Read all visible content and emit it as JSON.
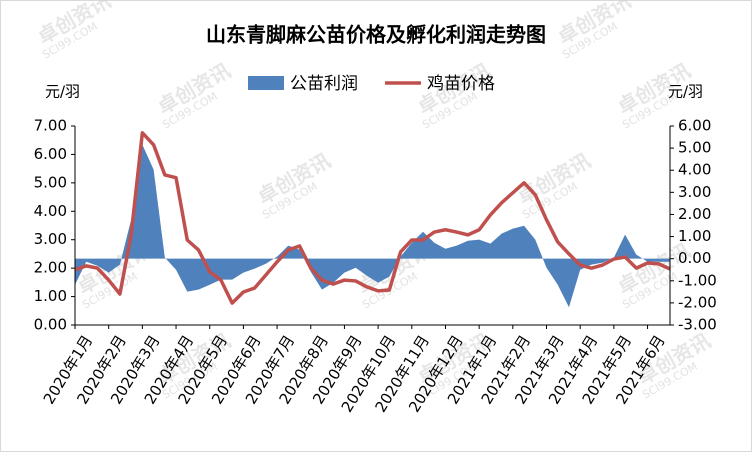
{
  "chart_data": {
    "type": "dual-axis-area-line",
    "title": "山东青脚麻公苗价格及孵化利润走势图",
    "y_label": "元/羽",
    "y2_label": "元/羽",
    "watermark": "卓创资讯",
    "watermark_url": "SCI99.COM",
    "legend": "top",
    "categories": [
      "2020年1月",
      null,
      null,
      "2020年2月",
      null,
      null,
      "2020年3月",
      null,
      null,
      "2020年4月",
      null,
      null,
      "2020年5月",
      null,
      null,
      "2020年6月",
      null,
      null,
      "2020年7月",
      null,
      null,
      "2020年8月",
      null,
      null,
      "2020年9月",
      null,
      null,
      "2020年10月",
      null,
      null,
      "2020年11月",
      null,
      null,
      "2020年12月",
      null,
      null,
      "2021年1月",
      null,
      null,
      "2021年2月",
      null,
      null,
      "2021年3月",
      null,
      null,
      "2021年4月",
      null,
      null,
      "2021年5月",
      null,
      null,
      "2021年6月",
      null,
      null
    ],
    "series": [
      {
        "name": "公苗利润",
        "type": "area",
        "axis": "y2",
        "color": "#4f81bd",
        "values": [
          -1.18,
          -0.14,
          -0.32,
          -0.63,
          -0.27,
          1.76,
          5.16,
          4.03,
          0.05,
          -0.5,
          -1.49,
          -1.4,
          -1.18,
          -0.95,
          -0.95,
          -0.63,
          -0.45,
          -0.23,
          0.09,
          0.59,
          0.41,
          -0.59,
          -1.4,
          -1.09,
          -0.63,
          -0.41,
          -0.77,
          -1.09,
          -0.81,
          0.09,
          0.72,
          1.22,
          0.72,
          0.45,
          0.59,
          0.81,
          0.86,
          0.68,
          1.13,
          1.36,
          1.49,
          0.86,
          -0.41,
          -1.18,
          -2.2,
          -0.5,
          -0.27,
          -0.18,
          0.05,
          1.09,
          0.18,
          -0.14,
          -0.14,
          -0.14
        ]
      },
      {
        "name": "鸡苗价格",
        "type": "line",
        "axis": "y",
        "color": "#c0504d",
        "values": [
          1.94,
          2.08,
          2.0,
          1.58,
          1.09,
          3.17,
          6.76,
          6.34,
          5.28,
          5.18,
          2.99,
          2.64,
          1.87,
          1.58,
          0.77,
          1.16,
          1.3,
          1.76,
          2.22,
          2.64,
          2.78,
          2.0,
          1.58,
          1.44,
          1.58,
          1.55,
          1.34,
          1.2,
          1.23,
          2.57,
          2.99,
          2.99,
          3.27,
          3.35,
          3.27,
          3.17,
          3.35,
          3.87,
          4.3,
          4.65,
          5.0,
          4.58,
          3.7,
          2.92,
          2.5,
          2.11,
          2.0,
          2.11,
          2.32,
          2.39,
          2.0,
          2.18,
          2.15,
          1.97
        ]
      }
    ],
    "ylim": [
      0,
      7
    ],
    "yticks": [
      {
        "value": 0,
        "label": "0.00"
      },
      {
        "value": 1,
        "label": "1.00"
      },
      {
        "value": 2,
        "label": "2.00"
      },
      {
        "value": 3,
        "label": "3.00"
      },
      {
        "value": 4,
        "label": "4.00"
      },
      {
        "value": 5,
        "label": "5.00"
      },
      {
        "value": 6,
        "label": "6.00"
      },
      {
        "value": 7,
        "label": "7.00"
      }
    ],
    "y2lim": [
      -3,
      6
    ],
    "y2ticks": [
      {
        "value": -3,
        "label": "-3.00"
      },
      {
        "value": -2,
        "label": "-2.00"
      },
      {
        "value": -1,
        "label": "-1.00"
      },
      {
        "value": 0,
        "label": "0.00"
      },
      {
        "value": 1,
        "label": "1.00"
      },
      {
        "value": 2,
        "label": "2.00"
      },
      {
        "value": 3,
        "label": "3.00"
      },
      {
        "value": 4,
        "label": "4.00"
      },
      {
        "value": 5,
        "label": "5.00"
      },
      {
        "value": 6,
        "label": "6.00"
      }
    ]
  }
}
